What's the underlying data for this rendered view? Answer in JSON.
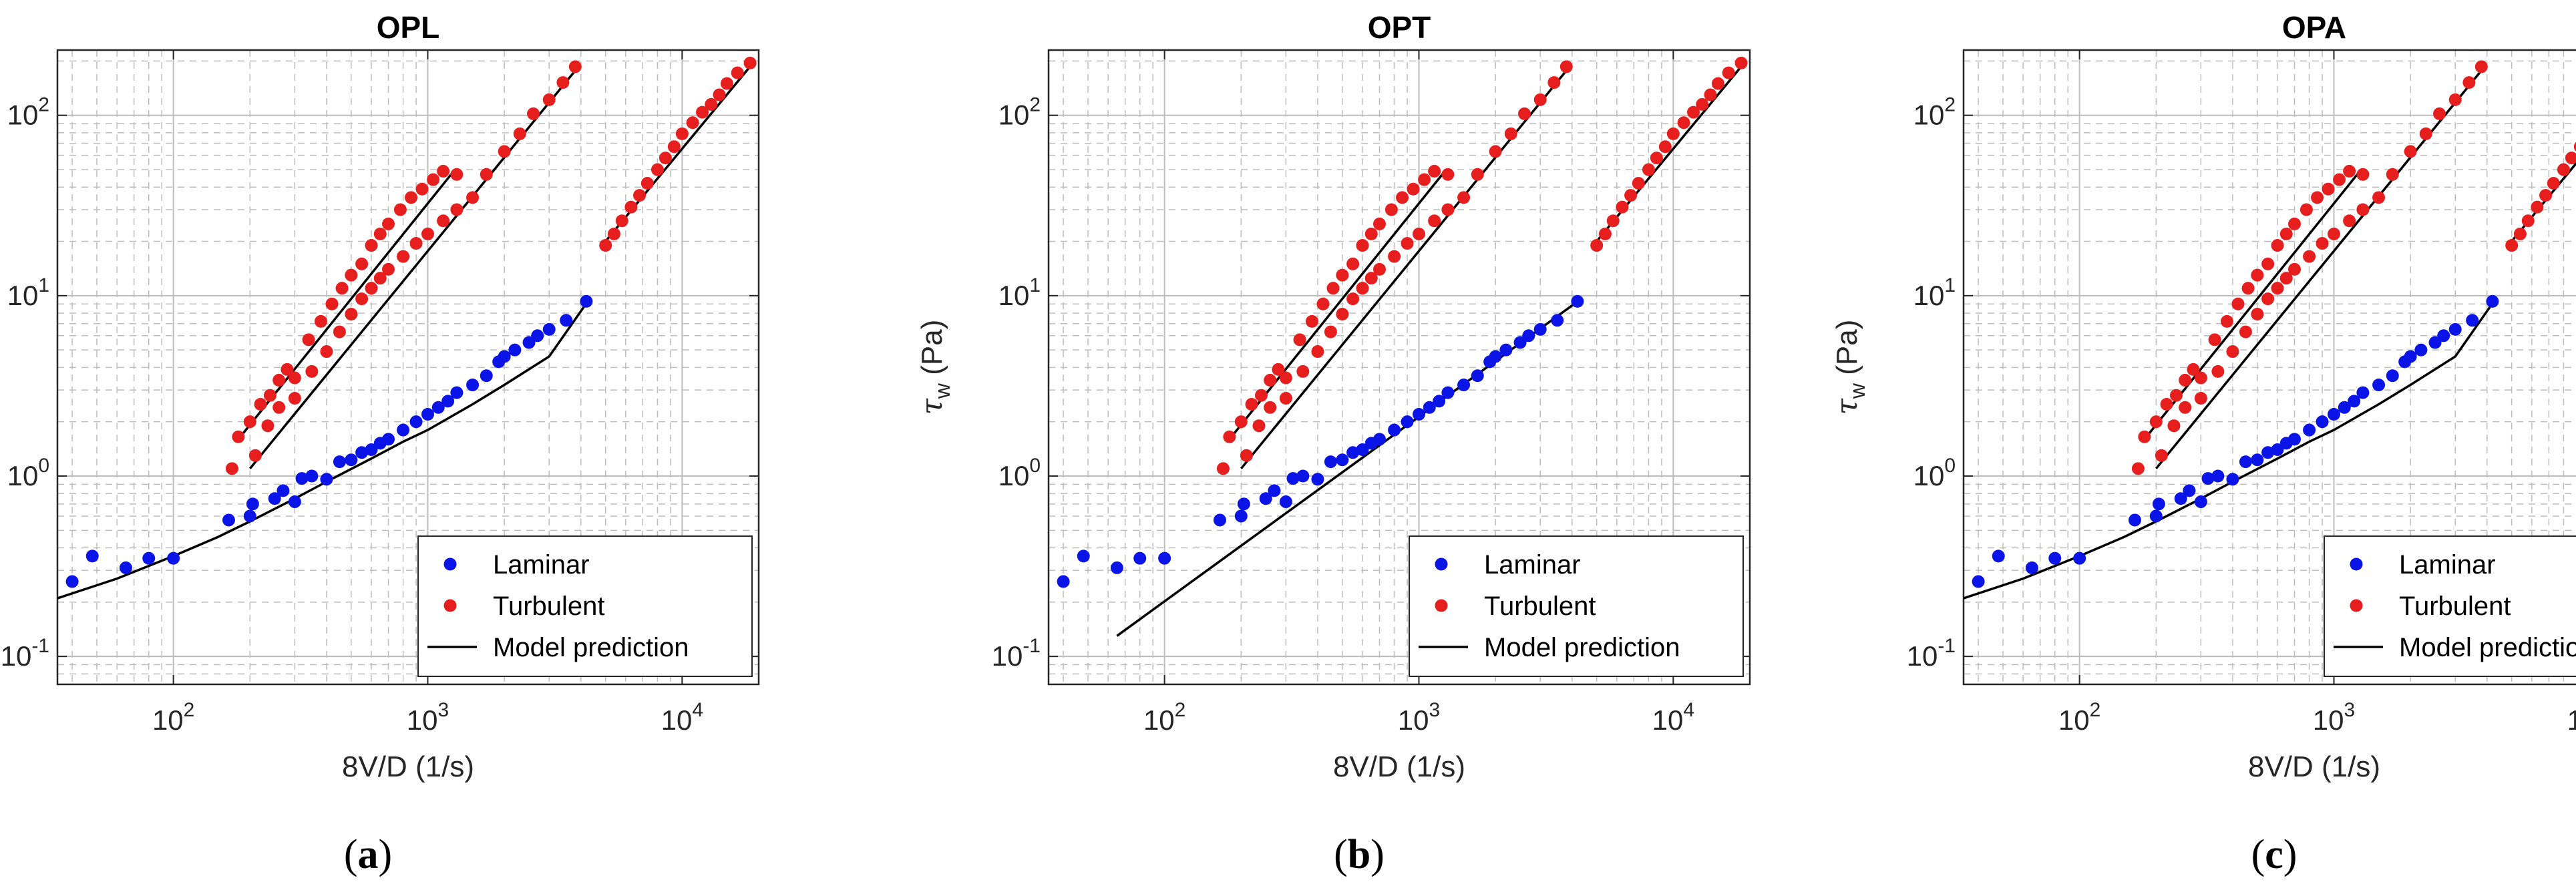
{
  "figure": {
    "panels": [
      {
        "id": "a",
        "title": "OPL",
        "caption_open": "(",
        "caption_letter": "a",
        "caption_close": ")",
        "xlabel": "8V/D (1/s)",
        "ylabel_symbol": "τ",
        "ylabel_sub": "w",
        "ylabel_unit": " (Pa)",
        "legend": [
          "Laminar",
          "Turbulent",
          "Model prediction"
        ]
      },
      {
        "id": "b",
        "title": "OPT",
        "caption_open": "(",
        "caption_letter": "b",
        "caption_close": ")",
        "xlabel": "8V/D (1/s)",
        "ylabel_symbol": "τ",
        "ylabel_sub": "w",
        "ylabel_unit": " (Pa)",
        "legend": [
          "Laminar",
          "Turbulent",
          "Model prediction"
        ]
      },
      {
        "id": "c",
        "title": "OPA",
        "caption_open": "(",
        "caption_letter": "c",
        "caption_close": ")",
        "xlabel": "8V/D (1/s)",
        "ylabel_symbol": "τ",
        "ylabel_sub": "w",
        "ylabel_unit": " (Pa)",
        "legend": [
          "Laminar",
          "Turbulent",
          "Model prediction"
        ]
      }
    ],
    "colors": {
      "laminar": "#0a14e6",
      "turbulent": "#e61e1e",
      "model": "#000000",
      "grid": "#bdbdbd"
    },
    "tick_labels": {
      "x": [
        {
          "base": "10",
          "exp": "2",
          "value": 100
        },
        {
          "base": "10",
          "exp": "3",
          "value": 1000
        },
        {
          "base": "10",
          "exp": "4",
          "value": 10000
        }
      ],
      "y": [
        {
          "base": "10",
          "exp": "-1",
          "value": 0.1
        },
        {
          "base": "10",
          "exp": "0",
          "value": 1
        },
        {
          "base": "10",
          "exp": "1",
          "value": 10
        },
        {
          "base": "10",
          "exp": "2",
          "value": 100
        }
      ]
    }
  },
  "chart_data": [
    {
      "type": "scatter",
      "panel": "a",
      "title": "OPL",
      "xlabel": "8V/D (1/s)",
      "ylabel": "τw (Pa)",
      "xscale": "log",
      "yscale": "log",
      "xlim": [
        35,
        20000
      ],
      "ylim": [
        0.07,
        230
      ],
      "grid": true,
      "legend_position": "bottom-right",
      "series": [
        {
          "name": "Laminar",
          "kind": "points",
          "color": "#0a14e6",
          "x": [
            40,
            48,
            65,
            80,
            100,
            165,
            200,
            205,
            250,
            270,
            300,
            320,
            350,
            400,
            450,
            500,
            550,
            600,
            650,
            700,
            800,
            900,
            1000,
            1100,
            1200,
            1300,
            1500,
            1700,
            1900,
            2000,
            2200,
            2500,
            2700,
            3000,
            3500,
            4200
          ],
          "y": [
            0.26,
            0.36,
            0.31,
            0.35,
            0.35,
            0.57,
            0.6,
            0.7,
            0.75,
            0.83,
            0.72,
            0.97,
            1.0,
            0.96,
            1.2,
            1.23,
            1.35,
            1.4,
            1.52,
            1.6,
            1.8,
            2.0,
            2.2,
            2.4,
            2.6,
            2.9,
            3.2,
            3.6,
            4.3,
            4.6,
            5.0,
            5.5,
            6.0,
            6.5,
            7.3,
            9.3
          ]
        },
        {
          "name": "Turbulent",
          "kind": "points",
          "color": "#e61e1e",
          "x": [
            170,
            180,
            200,
            220,
            240,
            260,
            280,
            300,
            340,
            380,
            420,
            460,
            500,
            550,
            600,
            650,
            700,
            780,
            860,
            950,
            1050,
            1150,
            1300,
            210,
            235,
            260,
            300,
            350,
            400,
            450,
            500,
            550,
            600,
            650,
            700,
            800,
            900,
            1000,
            1150,
            1300,
            1500,
            1700,
            2000,
            2300,
            2600,
            3000,
            3400,
            3800,
            5000,
            5400,
            5800,
            6300,
            6800,
            7300,
            8000,
            8600,
            9300,
            10000,
            11000,
            12000,
            13000,
            14000,
            15000,
            16500,
            18500
          ],
          "y": [
            1.1,
            1.65,
            2.0,
            2.5,
            2.8,
            3.4,
            3.9,
            3.5,
            5.7,
            7.2,
            9.0,
            11.0,
            13.0,
            15.0,
            19.0,
            22.0,
            25.0,
            30.0,
            35.0,
            39.0,
            44.0,
            49.0,
            47.0,
            1.3,
            1.9,
            2.4,
            2.7,
            3.8,
            4.9,
            6.3,
            7.9,
            9.6,
            11.0,
            12.5,
            14.0,
            16.5,
            19.5,
            22.0,
            26.0,
            30.0,
            35.0,
            47.0,
            63.0,
            79.0,
            102.0,
            122.0,
            152.0,
            186.0,
            19.0,
            22.0,
            26.0,
            31.0,
            36.0,
            42.0,
            50.0,
            58.0,
            67.0,
            79.0,
            91.0,
            104.0,
            115.0,
            130.0,
            150.0,
            172.0,
            195.0
          ]
        },
        {
          "name": "Model prediction",
          "kind": "line",
          "color": "#000000",
          "segments": [
            {
              "x": [
                35,
                60,
                100,
                150,
                200,
                300,
                400,
                600,
                800,
                1000,
                1500,
                2000,
                3000,
                4300
              ],
              "y": [
                0.21,
                0.27,
                0.36,
                0.46,
                0.56,
                0.75,
                0.93,
                1.25,
                1.55,
                1.8,
                2.5,
                3.2,
                4.6,
                9.5
              ]
            },
            {
              "x": [
                180,
                1250
              ],
              "y": [
                1.6,
                48
              ]
            },
            {
              "x": [
                200,
                3900
              ],
              "y": [
                1.1,
                185
              ]
            },
            {
              "x": [
                5000,
                19000
              ],
              "y": [
                20,
                195
              ]
            }
          ]
        }
      ]
    },
    {
      "type": "scatter",
      "panel": "b",
      "title": "OPT",
      "xlabel": "8V/D (1/s)",
      "ylabel": "τw (Pa)",
      "xscale": "log",
      "yscale": "log",
      "xlim": [
        35,
        20000
      ],
      "ylim": [
        0.07,
        230
      ],
      "grid": true,
      "legend_position": "bottom-right",
      "series": [
        {
          "name": "Laminar",
          "kind": "points",
          "color": "#0a14e6",
          "x": [
            40,
            48,
            65,
            80,
            100,
            165,
            200,
            205,
            250,
            270,
            300,
            320,
            350,
            400,
            450,
            500,
            550,
            600,
            650,
            700,
            800,
            900,
            1000,
            1100,
            1200,
            1300,
            1500,
            1700,
            1900,
            2000,
            2200,
            2500,
            2700,
            3000,
            3500,
            4200
          ],
          "y": [
            0.26,
            0.36,
            0.31,
            0.35,
            0.35,
            0.57,
            0.6,
            0.7,
            0.75,
            0.83,
            0.72,
            0.97,
            1.0,
            0.96,
            1.2,
            1.23,
            1.35,
            1.4,
            1.52,
            1.6,
            1.8,
            2.0,
            2.2,
            2.4,
            2.6,
            2.9,
            3.2,
            3.6,
            4.3,
            4.6,
            5.0,
            5.5,
            6.0,
            6.5,
            7.3,
            9.3
          ]
        },
        {
          "name": "Turbulent",
          "kind": "points",
          "color": "#e61e1e",
          "x": [
            170,
            180,
            200,
            220,
            240,
            260,
            280,
            300,
            340,
            380,
            420,
            460,
            500,
            550,
            600,
            650,
            700,
            780,
            860,
            950,
            1050,
            1150,
            1300,
            210,
            235,
            260,
            300,
            350,
            400,
            450,
            500,
            550,
            600,
            650,
            700,
            800,
            900,
            1000,
            1150,
            1300,
            1500,
            1700,
            2000,
            2300,
            2600,
            3000,
            3400,
            3800,
            5000,
            5400,
            5800,
            6300,
            6800,
            7300,
            8000,
            8600,
            9300,
            10000,
            11000,
            12000,
            13000,
            14000,
            15000,
            16500,
            18500
          ],
          "y": [
            1.1,
            1.65,
            2.0,
            2.5,
            2.8,
            3.4,
            3.9,
            3.5,
            5.7,
            7.2,
            9.0,
            11.0,
            13.0,
            15.0,
            19.0,
            22.0,
            25.0,
            30.0,
            35.0,
            39.0,
            44.0,
            49.0,
            47.0,
            1.3,
            1.9,
            2.4,
            2.7,
            3.8,
            4.9,
            6.3,
            7.9,
            9.6,
            11.0,
            12.5,
            14.0,
            16.5,
            19.5,
            22.0,
            26.0,
            30.0,
            35.0,
            47.0,
            63.0,
            79.0,
            102.0,
            122.0,
            152.0,
            186.0,
            19.0,
            22.0,
            26.0,
            31.0,
            36.0,
            42.0,
            50.0,
            58.0,
            67.0,
            79.0,
            91.0,
            104.0,
            115.0,
            130.0,
            150.0,
            172.0,
            195.0
          ]
        },
        {
          "name": "Model prediction",
          "kind": "line",
          "color": "#000000",
          "segments": [
            {
              "x": [
                65,
                4300
              ],
              "y": [
                0.13,
                9.5
              ]
            },
            {
              "x": [
                180,
                1250
              ],
              "y": [
                1.6,
                48
              ]
            },
            {
              "x": [
                200,
                3900
              ],
              "y": [
                1.1,
                185
              ]
            },
            {
              "x": [
                5000,
                19000
              ],
              "y": [
                20,
                195
              ]
            }
          ]
        }
      ]
    },
    {
      "type": "scatter",
      "panel": "c",
      "title": "OPA",
      "xlabel": "8V/D (1/s)",
      "ylabel": "τw (Pa)",
      "xscale": "log",
      "yscale": "log",
      "xlim": [
        35,
        20000
      ],
      "ylim": [
        0.07,
        230
      ],
      "grid": true,
      "legend_position": "bottom-right",
      "series": [
        {
          "name": "Laminar",
          "kind": "points",
          "color": "#0a14e6",
          "x": [
            40,
            48,
            65,
            80,
            100,
            165,
            200,
            205,
            250,
            270,
            300,
            320,
            350,
            400,
            450,
            500,
            550,
            600,
            650,
            700,
            800,
            900,
            1000,
            1100,
            1200,
            1300,
            1500,
            1700,
            1900,
            2000,
            2200,
            2500,
            2700,
            3000,
            3500,
            4200
          ],
          "y": [
            0.26,
            0.36,
            0.31,
            0.35,
            0.35,
            0.57,
            0.6,
            0.7,
            0.75,
            0.83,
            0.72,
            0.97,
            1.0,
            0.96,
            1.2,
            1.23,
            1.35,
            1.4,
            1.52,
            1.6,
            1.8,
            2.0,
            2.2,
            2.4,
            2.6,
            2.9,
            3.2,
            3.6,
            4.3,
            4.6,
            5.0,
            5.5,
            6.0,
            6.5,
            7.3,
            9.3
          ]
        },
        {
          "name": "Turbulent",
          "kind": "points",
          "color": "#e61e1e",
          "x": [
            170,
            180,
            200,
            220,
            240,
            260,
            280,
            300,
            340,
            380,
            420,
            460,
            500,
            550,
            600,
            650,
            700,
            780,
            860,
            950,
            1050,
            1150,
            1300,
            210,
            235,
            260,
            300,
            350,
            400,
            450,
            500,
            550,
            600,
            650,
            700,
            800,
            900,
            1000,
            1150,
            1300,
            1500,
            1700,
            2000,
            2300,
            2600,
            3000,
            3400,
            3800,
            5000,
            5400,
            5800,
            6300,
            6800,
            7300,
            8000,
            8600,
            9300,
            10000,
            11000,
            12000,
            13000,
            14000,
            15000,
            16500,
            18500
          ],
          "y": [
            1.1,
            1.65,
            2.0,
            2.5,
            2.8,
            3.4,
            3.9,
            3.5,
            5.7,
            7.2,
            9.0,
            11.0,
            13.0,
            15.0,
            19.0,
            22.0,
            25.0,
            30.0,
            35.0,
            39.0,
            44.0,
            49.0,
            47.0,
            1.3,
            1.9,
            2.4,
            2.7,
            3.8,
            4.9,
            6.3,
            7.9,
            9.6,
            11.0,
            12.5,
            14.0,
            16.5,
            19.5,
            22.0,
            26.0,
            30.0,
            35.0,
            47.0,
            63.0,
            79.0,
            102.0,
            122.0,
            152.0,
            186.0,
            19.0,
            22.0,
            26.0,
            31.0,
            36.0,
            42.0,
            50.0,
            58.0,
            67.0,
            79.0,
            91.0,
            104.0,
            115.0,
            130.0,
            150.0,
            172.0,
            195.0
          ]
        },
        {
          "name": "Model prediction",
          "kind": "line",
          "color": "#000000",
          "segments": [
            {
              "x": [
                35,
                60,
                100,
                150,
                200,
                300,
                400,
                600,
                800,
                1000,
                1500,
                2000,
                3000,
                4300
              ],
              "y": [
                0.21,
                0.27,
                0.36,
                0.46,
                0.56,
                0.75,
                0.93,
                1.25,
                1.55,
                1.8,
                2.5,
                3.2,
                4.6,
                9.5
              ]
            },
            {
              "x": [
                180,
                1250
              ],
              "y": [
                1.6,
                48
              ]
            },
            {
              "x": [
                200,
                3900
              ],
              "y": [
                1.1,
                185
              ]
            },
            {
              "x": [
                5000,
                19000
              ],
              "y": [
                20,
                195
              ]
            }
          ]
        }
      ]
    }
  ]
}
